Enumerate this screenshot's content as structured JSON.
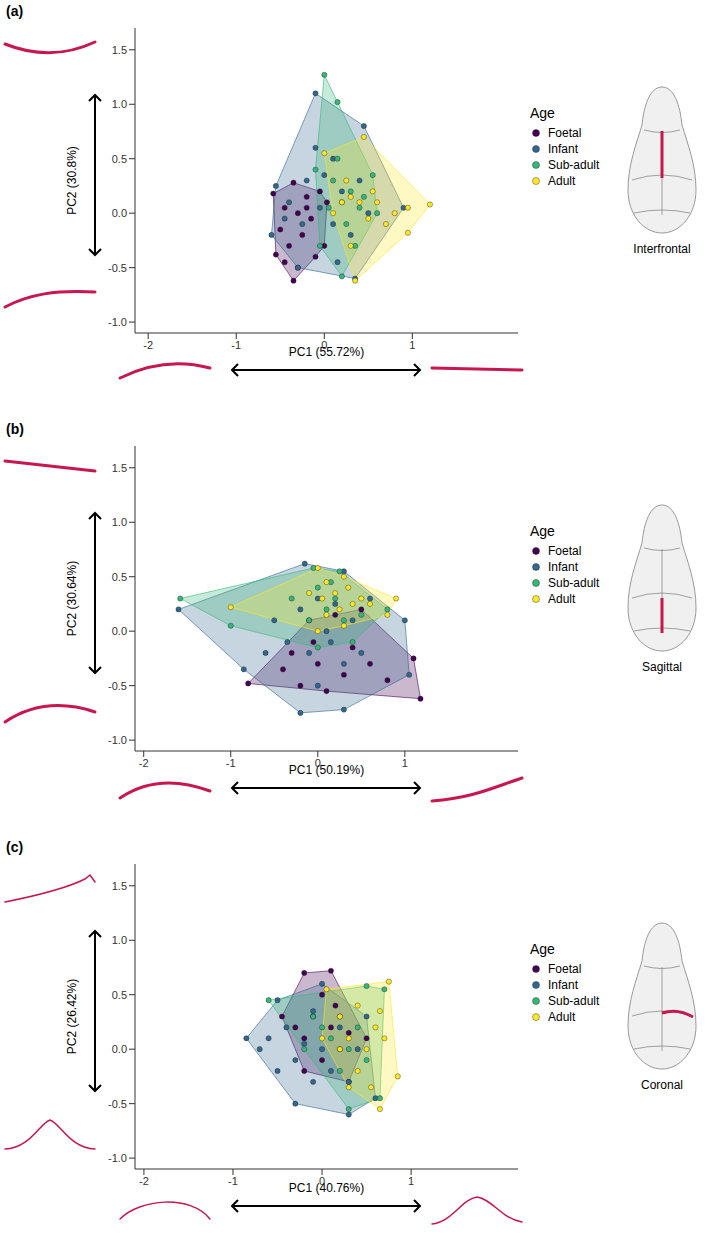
{
  "chart_data": [
    {
      "type": "scatter",
      "panel": "(a)",
      "x_label": "PC1 (55.72%)",
      "y_label": "PC2 (30.8%)",
      "annotation": "Interfrontal",
      "legend": "right",
      "legend_title": "Age",
      "grid": false,
      "marker": "circle",
      "xlim": [
        -2.15,
        2.2
      ],
      "ylim": [
        -1.1,
        1.7
      ],
      "xticks": [
        -2,
        -1,
        0,
        1
      ],
      "yticks": [
        {
          "value": -1,
          "label": "-1.0"
        },
        -0.5,
        {
          "value": 0,
          "label": "0.0"
        },
        0.5,
        {
          "value": 1,
          "label": "1.0"
        },
        1.5
      ],
      "series": [
        {
          "name": "Foetal",
          "color": "#440154",
          "values": [
            [
              -0.58,
              0.18
            ],
            [
              -0.35,
              0.28
            ],
            [
              -0.2,
              0.15
            ],
            [
              -0.05,
              0.2
            ],
            [
              0.03,
              0.1
            ],
            [
              -0.45,
              0.05
            ],
            [
              -0.3,
              0.0
            ],
            [
              -0.15,
              -0.05
            ],
            [
              -0.5,
              -0.15
            ],
            [
              -0.25,
              -0.2
            ],
            [
              -0.4,
              -0.3
            ],
            [
              0.0,
              -0.3
            ],
            [
              -0.55,
              -0.38
            ],
            [
              -0.3,
              -0.5
            ],
            [
              -0.35,
              -0.62
            ],
            [
              -0.1,
              -0.4
            ],
            [
              -0.45,
              -0.45
            ],
            [
              -0.2,
              0.05
            ]
          ]
        },
        {
          "name": "Infant",
          "color": "#31688e",
          "values": [
            [
              -0.1,
              1.1
            ],
            [
              0.45,
              0.8
            ],
            [
              0.9,
              0.05
            ],
            [
              0.35,
              -0.6
            ],
            [
              -0.3,
              -0.5
            ],
            [
              -0.6,
              -0.2
            ],
            [
              -0.55,
              0.25
            ],
            [
              -0.4,
              0.1
            ],
            [
              -0.2,
              0.3
            ],
            [
              -0.1,
              0.6
            ],
            [
              0.0,
              0.35
            ],
            [
              0.1,
              0.5
            ],
            [
              0.2,
              0.2
            ],
            [
              -0.25,
              -0.1
            ],
            [
              0.1,
              -0.1
            ],
            [
              0.3,
              -0.2
            ],
            [
              0.5,
              0.0
            ],
            [
              -0.45,
              -0.05
            ],
            [
              0.15,
              -0.45
            ],
            [
              -0.05,
              0.05
            ],
            [
              0.4,
              0.3
            ]
          ]
        },
        {
          "name": "Sub-adult",
          "color": "#35b779",
          "values": [
            [
              0.0,
              1.27
            ],
            [
              0.15,
              1.02
            ],
            [
              0.55,
              0.35
            ],
            [
              0.6,
              0.0
            ],
            [
              0.2,
              -0.58
            ],
            [
              -0.05,
              -0.3
            ],
            [
              -0.1,
              0.4
            ],
            [
              0.1,
              0.3
            ],
            [
              0.2,
              0.1
            ],
            [
              0.3,
              0.2
            ],
            [
              0.25,
              -0.1
            ],
            [
              0.4,
              0.05
            ],
            [
              0.05,
              0.05
            ],
            [
              0.35,
              -0.3
            ],
            [
              0.15,
              0.5
            ],
            [
              0.45,
              0.15
            ]
          ]
        },
        {
          "name": "Adult",
          "color": "#fde725",
          "values": [
            [
              0.0,
              0.55
            ],
            [
              0.45,
              0.7
            ],
            [
              0.95,
              0.05
            ],
            [
              1.2,
              0.08
            ],
            [
              0.95,
              -0.18
            ],
            [
              0.35,
              -0.62
            ],
            [
              0.1,
              0.0
            ],
            [
              0.2,
              0.1
            ],
            [
              0.3,
              0.15
            ],
            [
              0.4,
              0.1
            ],
            [
              0.5,
              -0.05
            ],
            [
              0.6,
              0.1
            ],
            [
              0.3,
              -0.3
            ],
            [
              0.7,
              -0.1
            ],
            [
              0.25,
              0.3
            ],
            [
              0.55,
              0.2
            ],
            [
              0.8,
              0.0
            ]
          ]
        }
      ]
    },
    {
      "type": "scatter",
      "panel": "(b)",
      "x_label": "PC1 (50.19%)",
      "y_label": "PC2 (30.64%)",
      "annotation": "Sagittal",
      "legend": "right",
      "legend_title": "Age",
      "grid": false,
      "marker": "circle",
      "xlim": [
        -2.1,
        2.3
      ],
      "ylim": [
        -1.1,
        1.7
      ],
      "xticks": [
        -2,
        -1,
        0,
        1
      ],
      "yticks": [
        {
          "value": -1,
          "label": "-1.0"
        },
        -0.5,
        {
          "value": 0,
          "label": "0.0"
        },
        0.5,
        {
          "value": 1,
          "label": "1.0"
        },
        1.5
      ],
      "series": [
        {
          "name": "Foetal",
          "color": "#440154",
          "values": [
            [
              -0.8,
              -0.48
            ],
            [
              -0.3,
              -0.2
            ],
            [
              -0.1,
              0.1
            ],
            [
              0.2,
              0.15
            ],
            [
              0.5,
              0.2
            ],
            [
              1.1,
              -0.25
            ],
            [
              1.18,
              -0.62
            ],
            [
              0.6,
              -0.3
            ],
            [
              0.3,
              -0.4
            ],
            [
              0.0,
              -0.3
            ],
            [
              -0.2,
              -0.5
            ],
            [
              0.1,
              -0.55
            ],
            [
              0.4,
              -0.15
            ],
            [
              -0.05,
              -0.1
            ],
            [
              0.8,
              -0.45
            ],
            [
              -0.4,
              -0.35
            ]
          ]
        },
        {
          "name": "Infant",
          "color": "#31688e",
          "values": [
            [
              -1.6,
              0.2
            ],
            [
              -0.15,
              0.62
            ],
            [
              0.3,
              0.55
            ],
            [
              1.0,
              0.1
            ],
            [
              1.05,
              -0.4
            ],
            [
              0.3,
              -0.72
            ],
            [
              -0.2,
              -0.75
            ],
            [
              -0.85,
              -0.35
            ],
            [
              -0.5,
              0.1
            ],
            [
              -0.2,
              0.2
            ],
            [
              0.0,
              0.3
            ],
            [
              0.1,
              0.0
            ],
            [
              0.2,
              0.25
            ],
            [
              0.4,
              0.1
            ],
            [
              -0.1,
              -0.2
            ],
            [
              0.3,
              -0.3
            ],
            [
              0.5,
              -0.2
            ],
            [
              0.0,
              -0.5
            ],
            [
              -0.35,
              -0.1
            ],
            [
              0.6,
              0.3
            ],
            [
              0.15,
              -0.1
            ],
            [
              -0.6,
              -0.2
            ]
          ]
        },
        {
          "name": "Sub-adult",
          "color": "#35b779",
          "values": [
            [
              -1.58,
              0.3
            ],
            [
              -0.05,
              0.58
            ],
            [
              0.25,
              0.55
            ],
            [
              0.8,
              0.2
            ],
            [
              0.4,
              -0.1
            ],
            [
              0.0,
              -0.15
            ],
            [
              -1.0,
              0.05
            ],
            [
              -0.3,
              0.3
            ],
            [
              0.0,
              0.4
            ],
            [
              0.1,
              0.2
            ],
            [
              0.2,
              0.3
            ],
            [
              0.3,
              0.1
            ],
            [
              -0.1,
              0.1
            ],
            [
              0.15,
              0.45
            ],
            [
              0.5,
              0.15
            ]
          ]
        },
        {
          "name": "Adult",
          "color": "#fde725",
          "values": [
            [
              -1.0,
              0.22
            ],
            [
              0.0,
              0.58
            ],
            [
              0.3,
              0.5
            ],
            [
              0.9,
              0.3
            ],
            [
              0.8,
              0.15
            ],
            [
              0.3,
              0.05
            ],
            [
              0.0,
              0.0
            ],
            [
              0.05,
              0.3
            ],
            [
              0.1,
              0.45
            ],
            [
              0.2,
              0.35
            ],
            [
              0.25,
              0.2
            ],
            [
              0.35,
              0.4
            ],
            [
              0.4,
              0.25
            ],
            [
              0.5,
              0.3
            ],
            [
              0.1,
              0.15
            ],
            [
              0.6,
              0.25
            ],
            [
              -0.1,
              0.35
            ]
          ]
        }
      ]
    },
    {
      "type": "scatter",
      "panel": "(c)",
      "x_label": "PC1 (40.76%)",
      "y_label": "PC2 (26.42%)",
      "annotation": "Coronal",
      "legend": "right",
      "legend_title": "Age",
      "grid": false,
      "marker": "circle",
      "xlim": [
        -2.1,
        2.2
      ],
      "ylim": [
        -1.1,
        1.7
      ],
      "xticks": [
        -2,
        -1,
        0,
        1
      ],
      "yticks": [
        {
          "value": -1,
          "label": "-1.0"
        },
        -0.5,
        {
          "value": 0,
          "label": "0.0"
        },
        0.5,
        {
          "value": 1,
          "label": "1.0"
        },
        1.5
      ],
      "series": [
        {
          "name": "Foetal",
          "color": "#440154",
          "values": [
            [
              -0.2,
              0.7
            ],
            [
              0.1,
              0.72
            ],
            [
              0.5,
              0.1
            ],
            [
              0.3,
              -0.3
            ],
            [
              -0.2,
              -0.2
            ],
            [
              -0.45,
              0.3
            ],
            [
              -0.1,
              0.3
            ],
            [
              0.0,
              0.5
            ],
            [
              0.1,
              0.2
            ],
            [
              -0.2,
              0.1
            ],
            [
              0.2,
              0.0
            ],
            [
              0.0,
              -0.1
            ],
            [
              -0.3,
              0.2
            ],
            [
              0.15,
              0.4
            ],
            [
              0.3,
              0.15
            ]
          ]
        },
        {
          "name": "Infant",
          "color": "#31688e",
          "values": [
            [
              -0.85,
              0.1
            ],
            [
              -0.5,
              0.45
            ],
            [
              0.0,
              0.6
            ],
            [
              0.5,
              0.3
            ],
            [
              0.6,
              -0.45
            ],
            [
              0.3,
              -0.6
            ],
            [
              -0.3,
              -0.5
            ],
            [
              -0.6,
              0.1
            ],
            [
              -0.4,
              0.2
            ],
            [
              -0.3,
              -0.1
            ],
            [
              -0.2,
              0.05
            ],
            [
              -0.1,
              0.35
            ],
            [
              0.0,
              0.0
            ],
            [
              0.1,
              -0.2
            ],
            [
              0.2,
              0.2
            ],
            [
              0.3,
              -0.3
            ],
            [
              -0.5,
              -0.2
            ],
            [
              -0.1,
              -0.3
            ],
            [
              0.4,
              0.0
            ],
            [
              -0.7,
              0.0
            ]
          ]
        },
        {
          "name": "Sub-adult",
          "color": "#35b779",
          "values": [
            [
              -0.6,
              0.45
            ],
            [
              0.5,
              0.58
            ],
            [
              0.7,
              0.55
            ],
            [
              0.65,
              -0.45
            ],
            [
              0.3,
              -0.55
            ],
            [
              -0.2,
              0.0
            ],
            [
              0.0,
              0.2
            ],
            [
              0.1,
              0.1
            ],
            [
              0.2,
              0.3
            ],
            [
              0.3,
              0.0
            ],
            [
              0.4,
              0.2
            ],
            [
              0.2,
              -0.2
            ],
            [
              0.5,
              -0.1
            ],
            [
              -0.1,
              0.3
            ]
          ]
        },
        {
          "name": "Adult",
          "color": "#fde725",
          "values": [
            [
              0.05,
              0.55
            ],
            [
              0.75,
              0.62
            ],
            [
              0.85,
              -0.25
            ],
            [
              0.65,
              -0.55
            ],
            [
              0.3,
              -0.35
            ],
            [
              0.0,
              0.1
            ],
            [
              0.2,
              0.3
            ],
            [
              0.3,
              0.1
            ],
            [
              0.4,
              0.4
            ],
            [
              0.5,
              0.0
            ],
            [
              0.6,
              0.2
            ],
            [
              0.4,
              -0.2
            ],
            [
              0.7,
              0.1
            ],
            [
              0.55,
              -0.35
            ],
            [
              0.2,
              0.0
            ],
            [
              0.65,
              0.35
            ]
          ]
        }
      ]
    }
  ]
}
